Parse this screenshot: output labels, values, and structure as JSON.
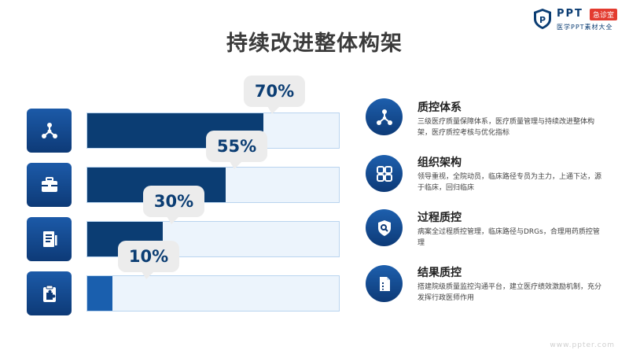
{
  "brand": {
    "name": "PPT",
    "badge": "急诊室",
    "subtitle": "医学PPT素材大全"
  },
  "title": "持续改进整体构架",
  "watermark": "www.ppter.com",
  "colors": {
    "primary": "#0b3d73",
    "accent": "#1a5fae",
    "track": "#ecf4fc",
    "callout": "#ececec"
  },
  "chart_data": {
    "type": "bar",
    "orientation": "horizontal",
    "categories": [
      "质控体系",
      "组织架构",
      "过程质控",
      "结果质控"
    ],
    "values": [
      70,
      55,
      30,
      10
    ],
    "labels": [
      "70%",
      "55%",
      "30%",
      "10%"
    ],
    "xlim": [
      0,
      100
    ],
    "icons": [
      "molecule-icon",
      "briefcase-icon",
      "document-icon",
      "puzzle-clipboard-icon"
    ]
  },
  "items": [
    {
      "title": "质控体系",
      "desc": "三级医疗质量保障体系，医疗质量管理与持续改进整体构架，医疗质控考核与优化指标",
      "icon": "molecule-icon"
    },
    {
      "title": "组织架构",
      "desc": "领导重视，全院动员，临床路径专员为主力，上通下达，源于临床，回归临床",
      "icon": "grid-apps-icon"
    },
    {
      "title": "过程质控",
      "desc": "病案全过程质控管理，临床路径与DRGs，合理用药质控管理",
      "icon": "shield-search-icon"
    },
    {
      "title": "结果质控",
      "desc": "搭建院级质量监控沟通平台，建立医疗绩效激励机制，充分发挥行政医师作用",
      "icon": "file-icon"
    }
  ]
}
